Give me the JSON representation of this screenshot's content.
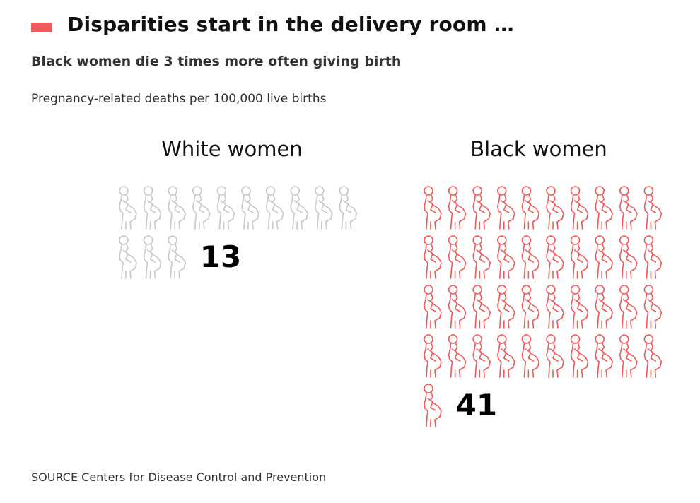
{
  "header": {
    "title": "Disparities start in the delivery room …",
    "subtitle": "Black women die 3 times more often giving birth",
    "accent_color": "#f05a5a"
  },
  "chart_data": {
    "type": "pictogram",
    "unit_label": "Pregnancy-related deaths per 100,000 live births",
    "icon": "pregnant-woman-icon",
    "icons_per_row": 10,
    "groups": [
      {
        "name": "White women",
        "value": 13,
        "color": "#c8c8c8"
      },
      {
        "name": "Black women",
        "value": 41,
        "color": "#f05a5a"
      }
    ]
  },
  "source": "SOURCE Centers for Disease Control and Prevention"
}
